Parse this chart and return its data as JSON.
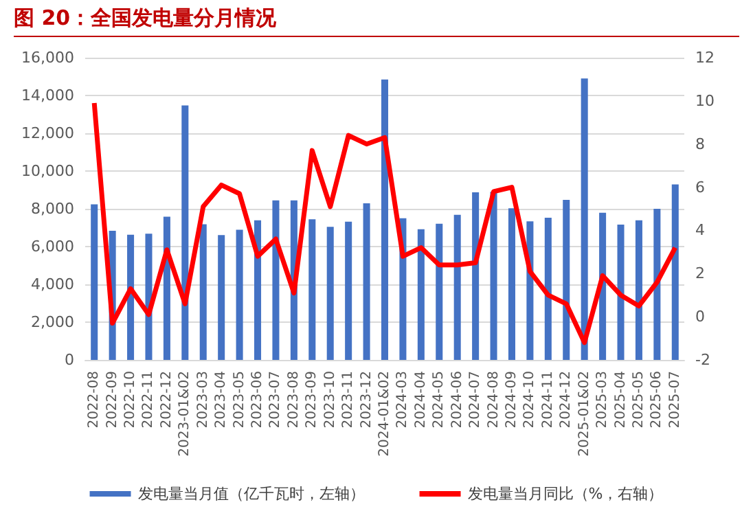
{
  "chart_data": {
    "type": "bar",
    "title": "图 20：全国发电量分月情况",
    "categories": [
      "2022-08",
      "2022-09",
      "2022-10",
      "2022-11",
      "2022-12",
      "2023-01&02",
      "2023-03",
      "2023-04",
      "2023-05",
      "2023-06",
      "2023-07",
      "2023-08",
      "2023-09",
      "2023-10",
      "2023-11",
      "2023-12",
      "2024-01&02",
      "2024-03",
      "2024-04",
      "2024-05",
      "2024-06",
      "2024-07",
      "2024-08",
      "2024-09",
      "2024-10",
      "2024-11",
      "2024-12",
      "2025-01&02",
      "2025-03",
      "2025-04",
      "2025-05",
      "2025-06",
      "2025-07"
    ],
    "series": [
      {
        "name": "发电量当月值（亿千瓦时，左轴）",
        "color": "#4472c4",
        "values": [
          8240,
          6840,
          6630,
          6680,
          7580,
          13470,
          7180,
          6610,
          6890,
          7390,
          8450,
          8450,
          7450,
          7050,
          7320,
          8290,
          14850,
          7500,
          6920,
          7210,
          7680,
          8870,
          8900,
          8030,
          7340,
          7530,
          8470,
          14900,
          7790,
          7160,
          7390,
          8000,
          9290
        ]
      },
      {
        "name": "发电量当月同比（%，右轴）",
        "type": "line",
        "axis": "y2",
        "color": "#ff0000",
        "values": [
          9.9,
          -0.3,
          1.3,
          0.1,
          3.1,
          0.6,
          5.1,
          6.1,
          5.7,
          2.8,
          3.6,
          1.1,
          7.7,
          5.1,
          8.4,
          8.0,
          8.3,
          2.8,
          3.2,
          2.4,
          2.4,
          2.5,
          5.8,
          6.0,
          2.1,
          1.0,
          0.6,
          -1.2,
          1.9,
          1.0,
          0.5,
          1.6,
          3.2
        ]
      }
    ],
    "ylim": [
      0,
      16000
    ],
    "yticks": [
      0,
      {
        "value": 2000,
        "label": "2,000"
      },
      {
        "value": 4000,
        "label": "4,000"
      },
      {
        "value": 6000,
        "label": "6,000"
      },
      {
        "value": 8000,
        "label": "8,000"
      },
      {
        "value": 10000,
        "label": "10,000"
      },
      {
        "value": 12000,
        "label": "12,000"
      },
      {
        "value": 14000,
        "label": "14,000"
      },
      {
        "value": 16000,
        "label": "16,000"
      }
    ],
    "y2lim": [
      -2,
      12
    ],
    "y2ticks": [
      -2,
      0,
      2,
      4,
      6,
      8,
      10,
      12
    ],
    "grid": "y",
    "legend": "bottom",
    "marker": "none",
    "line_style": "solid"
  }
}
